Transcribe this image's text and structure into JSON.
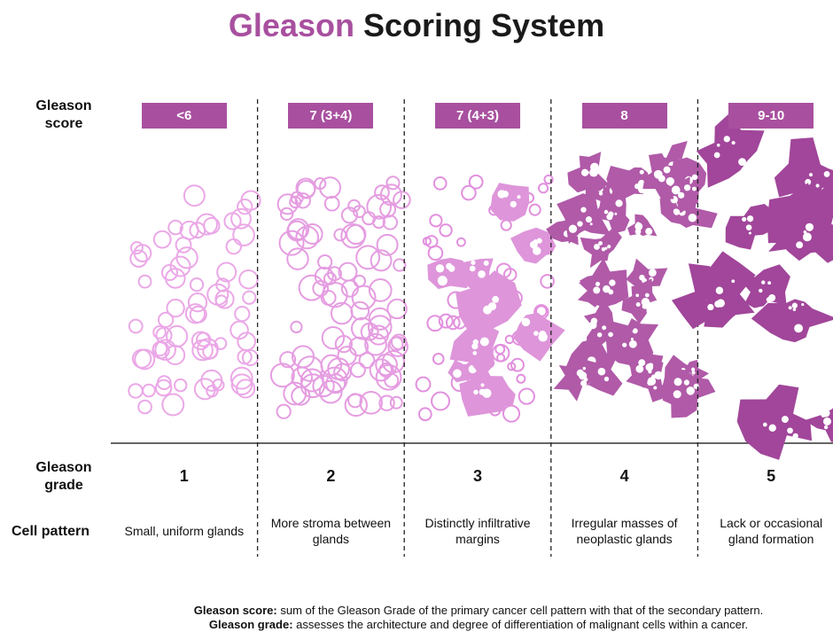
{
  "title": {
    "highlight": "Gleason",
    "rest": "Scoring System"
  },
  "row_labels": {
    "score": "Gleason score",
    "grade": "Gleason grade",
    "pattern": "Cell pattern"
  },
  "columns": [
    {
      "score": "<6",
      "grade": 1,
      "pattern": "Small, uniform glands"
    },
    {
      "score": "7 (3+4)",
      "grade": 2,
      "pattern": "More stroma between glands"
    },
    {
      "score": "7 (4+3)",
      "grade": 3,
      "pattern": "Distinctly infiltrative margins"
    },
    {
      "score": "8",
      "grade": 4,
      "pattern": "Irregular masses of neoplastic glands"
    },
    {
      "score": "9-10",
      "grade": 5,
      "pattern": "Lack or occasional gland formation"
    }
  ],
  "footnotes": [
    {
      "term": "Gleason score:",
      "text": "sum of the Gleason Grade of the primary cancer cell pattern with that of the secondary pattern."
    },
    {
      "term": "Gleason grade:",
      "text": "assesses the architecture and degree of differentiation of malignant cells within a  cancer."
    }
  ]
}
